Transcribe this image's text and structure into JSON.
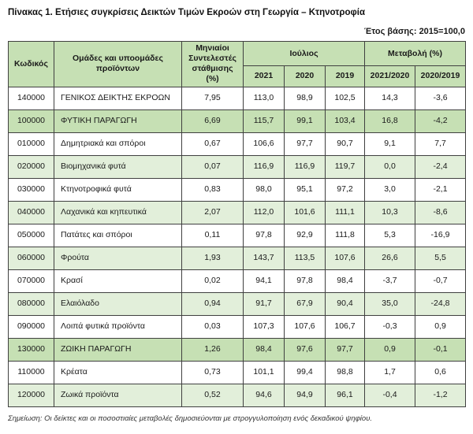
{
  "page": {
    "title": "Πίνακας 1. Ετήσιες συγκρίσεις Δεικτών Τιμών Εκροών στη Γεωργία – Κτηνοτροφία",
    "base_year": "Έτος βάσης: 2015=100,0",
    "note": "Σημείωση: Οι δείκτες και οι ποσοστιαίες μεταβολές δημοσιεύονται με στρογγυλοποίηση ενός δεκαδικού ψηφίου."
  },
  "table": {
    "headers": {
      "code": "Κωδικός",
      "groups": "Ομάδες και υποομάδες προϊόντων",
      "weights": "Μηνιαίοι Συντελεστές στάθμισης (%)",
      "july": "Ιούλιος",
      "change": "Μεταβολή (%)",
      "y2021": "2021",
      "y2020": "2020",
      "y2019": "2019",
      "c2021_2020": "2021/2020",
      "c2020_2019": "2020/2019"
    },
    "rows": [
      {
        "code": "140000",
        "name": "ΓΕΝΙΚΟΣ ΔΕΙΚΤΗΣ ΕΚΡΟΩΝ",
        "level": "main",
        "weight": "7,95",
        "july_2021": "113,0",
        "july_2020": "98,9",
        "july_2019": "102,5",
        "change_2021_2020": "14,3",
        "change_2020_2019": "-3,6"
      },
      {
        "code": "100000",
        "name": "ΦΥΤΙΚΗ ΠΑΡΑΓΩΓΗ",
        "level": "main",
        "weight": "6,69",
        "july_2021": "115,7",
        "july_2020": "99,1",
        "july_2019": "103,4",
        "change_2021_2020": "16,8",
        "change_2020_2019": "-4,2"
      },
      {
        "code": "010000",
        "name": "Δημητριακά και σπόροι",
        "level": "sub",
        "weight": "0,67",
        "july_2021": "106,6",
        "july_2020": "97,7",
        "july_2019": "90,7",
        "change_2021_2020": "9,1",
        "change_2020_2019": "7,7"
      },
      {
        "code": "020000",
        "name": "Βιομηχανικά φυτά",
        "level": "sub",
        "weight": "0,07",
        "july_2021": "116,9",
        "july_2020": "116,9",
        "july_2019": "119,7",
        "change_2021_2020": "0,0",
        "change_2020_2019": "-2,4"
      },
      {
        "code": "030000",
        "name": "Κτηνοτροφικά φυτά",
        "level": "sub",
        "weight": "0,83",
        "july_2021": "98,0",
        "july_2020": "95,1",
        "july_2019": "97,2",
        "change_2021_2020": "3,0",
        "change_2020_2019": "-2,1"
      },
      {
        "code": "040000",
        "name": "Λαχανικά και κηπευτικά",
        "level": "sub",
        "weight": "2,07",
        "july_2021": "112,0",
        "july_2020": "101,6",
        "july_2019": "111,1",
        "change_2021_2020": "10,3",
        "change_2020_2019": "-8,6"
      },
      {
        "code": "050000",
        "name": "Πατάτες και σπόροι",
        "level": "sub",
        "weight": "0,11",
        "july_2021": "97,8",
        "july_2020": "92,9",
        "july_2019": "111,8",
        "change_2021_2020": "5,3",
        "change_2020_2019": "-16,9"
      },
      {
        "code": "060000",
        "name": "Φρούτα",
        "level": "sub",
        "weight": "1,93",
        "july_2021": "143,7",
        "july_2020": "113,5",
        "july_2019": "107,6",
        "change_2021_2020": "26,6",
        "change_2020_2019": "5,5"
      },
      {
        "code": "070000",
        "name": "Κρασί",
        "level": "sub",
        "weight": "0,02",
        "july_2021": "94,1",
        "july_2020": "97,8",
        "july_2019": "98,4",
        "change_2021_2020": "-3,7",
        "change_2020_2019": "-0,7"
      },
      {
        "code": "080000",
        "name": "Ελαιόλαδο",
        "level": "sub",
        "weight": "0,94",
        "july_2021": "91,7",
        "july_2020": "67,9",
        "july_2019": "90,4",
        "change_2021_2020": "35,0",
        "change_2020_2019": "-24,8"
      },
      {
        "code": "090000",
        "name": "Λοιπά φυτικά προϊόντα",
        "level": "sub",
        "weight": "0,03",
        "july_2021": "107,3",
        "july_2020": "107,6",
        "july_2019": "106,7",
        "change_2021_2020": "-0,3",
        "change_2020_2019": "0,9"
      },
      {
        "code": "130000",
        "name": "ΖΩΙΚΗ ΠΑΡΑΓΩΓΗ",
        "level": "main",
        "weight": "1,26",
        "july_2021": "98,4",
        "july_2020": "97,6",
        "july_2019": "97,7",
        "change_2021_2020": "0,9",
        "change_2020_2019": "-0,1"
      },
      {
        "code": "110000",
        "name": "Κρέατα",
        "level": "sub",
        "weight": "0,73",
        "july_2021": "101,1",
        "july_2020": "99,4",
        "july_2019": "98,8",
        "change_2021_2020": "1,7",
        "change_2020_2019": "0,6"
      },
      {
        "code": "120000",
        "name": "Ζωικά προϊόντα",
        "level": "sub",
        "weight": "0,52",
        "july_2021": "94,6",
        "july_2020": "94,9",
        "july_2019": "96,1",
        "change_2021_2020": "-0,4",
        "change_2020_2019": "-1,2"
      }
    ]
  },
  "colors": {
    "header_green": "#c6e0b4",
    "band_green": "#e2efda",
    "border": "#404040"
  }
}
